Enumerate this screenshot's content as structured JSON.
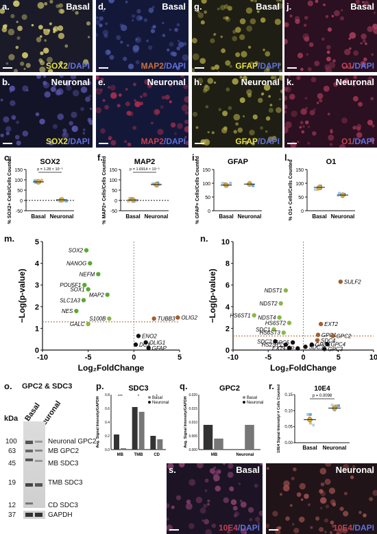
{
  "micrographs_top": [
    {
      "letter": "a.",
      "condition": "Basal",
      "stain": "SOX2",
      "dapi": "/DAPI",
      "stain_color": "#e8e040",
      "bg": "#1a1a28",
      "cell": "#d8d070"
    },
    {
      "letter": "d.",
      "condition": "Basal",
      "stain": "MAP2",
      "dapi": "/DAPI",
      "stain_color": "#c87040",
      "bg": "#141838",
      "cell": "#4a58a8"
    },
    {
      "letter": "g.",
      "condition": "Basal",
      "stain": "GFAP",
      "dapi": "/DAPI",
      "stain_color": "#e8e040",
      "bg": "#1e1e14",
      "cell": "#a8a040"
    },
    {
      "letter": "j.",
      "condition": "Basal",
      "stain": "O1",
      "dapi": "/DAPI",
      "stain_color": "#c04050",
      "bg": "#2a1020",
      "cell": "#b04060"
    },
    {
      "letter": "b.",
      "condition": "Neuronal",
      "stain": "SOX2",
      "dapi": "/DAPI",
      "stain_color": "#e8e040",
      "bg": "#141428",
      "cell": "#5a58b0"
    },
    {
      "letter": "e.",
      "condition": "Neuronal",
      "stain": "MAP2",
      "dapi": "/DAPI",
      "stain_color": "#c84050",
      "bg": "#141838",
      "cell": "#b03050"
    },
    {
      "letter": "h.",
      "condition": "Neuronal",
      "stain": "GFAP",
      "dapi": "/DAPI",
      "stain_color": "#e8e040",
      "bg": "#1e1e14",
      "cell": "#b0a848"
    },
    {
      "letter": "k.",
      "condition": "Neuronal",
      "stain": "O1",
      "dapi": "/DAPI",
      "stain_color": "#c04050",
      "bg": "#2a1020",
      "cell": "#a83858"
    }
  ],
  "panels": {
    "c": {
      "letter": "c.",
      "title": "SOX2",
      "ylabel": "% SOX2+ Cells/Cells Counted",
      "pval": "p = 1.28 × 10⁻⁵",
      "yticks": [
        "150",
        "100",
        "50",
        "0",
        "-50"
      ],
      "x": [
        "Basal",
        "Neuronal"
      ],
      "means": [
        90,
        3
      ]
    },
    "f": {
      "letter": "f.",
      "title": "MAP2",
      "ylabel": "% MAP2+ Cells/Cells Counted",
      "pval": "p = 1.6914 × 10⁻⁵",
      "yticks": [
        "150",
        "100",
        "50",
        "0",
        "-50"
      ],
      "x": [
        "Basal",
        "Neuronal"
      ],
      "means": [
        2,
        77
      ]
    },
    "i": {
      "letter": "i.",
      "title": "GFAP",
      "ylabel": "% GFAP+ Cells/Cells Counted",
      "yticks": [
        "150",
        "100",
        "50",
        "0"
      ],
      "x": [
        "Basal",
        "Neuronal"
      ],
      "means": [
        93,
        97
      ]
    },
    "l": {
      "letter": "l.",
      "title": "O1",
      "ylabel": "% O1+ Cells/Cells Counted",
      "yticks": [
        "150",
        "100",
        "50",
        "0"
      ],
      "x": [
        "Basal",
        "Neuronal"
      ],
      "means": [
        85,
        57
      ]
    }
  },
  "volcano_m": {
    "letter": "m.",
    "xlabel": "Log₂FoldChange",
    "ylabel": "−Log(p-value)",
    "xticks": [
      "-10",
      "-5",
      "0",
      "5"
    ],
    "yticks": [
      "0",
      "1",
      "2",
      "3",
      "4",
      "5"
    ],
    "points": [
      {
        "label": "SOX2",
        "x": -5.2,
        "y": 4.6,
        "c": "#5aaa30"
      },
      {
        "label": "NANOG",
        "x": -4.8,
        "y": 4.0,
        "c": "#5aaa30"
      },
      {
        "label": "NEFM",
        "x": -3.9,
        "y": 3.5,
        "c": "#5aaa30"
      },
      {
        "label": "POU5F1",
        "x": -5.4,
        "y": 3.0,
        "c": "#5aaa30"
      },
      {
        "label": "SOX1",
        "x": -5.0,
        "y": 2.8,
        "c": "#5aaa30"
      },
      {
        "label": "MAP2",
        "x": -2.9,
        "y": 2.55,
        "c": "#5aaa30"
      },
      {
        "label": "SLC1A3",
        "x": -5.5,
        "y": 2.3,
        "c": "#5aaa30"
      },
      {
        "label": "NES",
        "x": -6.3,
        "y": 1.8,
        "c": "#5aaa30"
      },
      {
        "label": "S100B",
        "x": -2.7,
        "y": 1.45,
        "c": "#8ab848"
      },
      {
        "label": "GALC",
        "x": -5.0,
        "y": 1.2,
        "c": "#8ab848"
      },
      {
        "label": "OLIG2",
        "x": 4.8,
        "y": 1.5,
        "c": "#a06030"
      },
      {
        "label": "TUBB3",
        "x": 2.2,
        "y": 1.45,
        "c": "#a06030"
      },
      {
        "label": "ENO2",
        "x": 0.5,
        "y": 0.65,
        "c": "#111"
      },
      {
        "label": "DCX",
        "x": 0.2,
        "y": 0.25,
        "c": "#111"
      },
      {
        "label": "OLIG1",
        "x": 1.3,
        "y": 0.35,
        "c": "#111"
      },
      {
        "label": "GFAP",
        "x": 1.6,
        "y": 0.1,
        "c": "#111"
      }
    ]
  },
  "volcano_n": {
    "letter": "n.",
    "xlabel": "Log₂FoldChange",
    "ylabel": "−Log(p-value)",
    "xticks": [
      "-10",
      "-5",
      "0",
      "5",
      "10"
    ],
    "yticks": [
      "0",
      "2",
      "4",
      "6",
      "8",
      "10"
    ],
    "points": [
      {
        "label": "SULF2",
        "x": 5.3,
        "y": 6.3,
        "c": "#a06030"
      },
      {
        "label": "NDST1",
        "x": -2.5,
        "y": 5.5,
        "c": "#8ab848"
      },
      {
        "label": "NDST2",
        "x": -3.2,
        "y": 4.3,
        "c": "#8ab848"
      },
      {
        "label": "HS6ST1",
        "x": -7.0,
        "y": 3.2,
        "c": "#8ab848"
      },
      {
        "label": "NDST4",
        "x": -3.4,
        "y": 3.0,
        "c": "#8ab848"
      },
      {
        "label": "HS6ST2",
        "x": -2.0,
        "y": 2.5,
        "c": "#8ab848"
      },
      {
        "label": "EXT2",
        "x": 2.5,
        "y": 2.4,
        "c": "#a06030"
      },
      {
        "label": "SDC1",
        "x": -4.2,
        "y": 1.9,
        "c": "#8ab848"
      },
      {
        "label": "HS6ST3",
        "x": -2.8,
        "y": 1.6,
        "c": "#8ab848"
      },
      {
        "label": "GPC1",
        "x": 2.1,
        "y": 1.4,
        "c": "#a06030"
      },
      {
        "label": "GPC2",
        "x": 4.2,
        "y": 1.3,
        "c": "#a06030"
      },
      {
        "label": "SDC4",
        "x": 2.0,
        "y": 0.9,
        "c": "#a06030"
      },
      {
        "label": "SDC2",
        "x": -4.0,
        "y": 0.8,
        "c": "#111"
      },
      {
        "label": "GPC5",
        "x": -1.5,
        "y": 0.7,
        "c": "#111"
      },
      {
        "label": "GPC4",
        "x": 3.4,
        "y": 0.55,
        "c": "#111"
      },
      {
        "label": "GPC6",
        "x": 1.2,
        "y": 0.5,
        "c": "#111"
      },
      {
        "label": "HS2ST1",
        "x": -2.5,
        "y": 0.5,
        "c": "#111"
      },
      {
        "label": "EXT1",
        "x": -2.0,
        "y": 0.2,
        "c": "#111"
      },
      {
        "label": "CS-EP",
        "x": -0.8,
        "y": 0.15,
        "c": "#111"
      },
      {
        "label": "SDC3",
        "x": 0.3,
        "y": 0.3,
        "c": "#111"
      },
      {
        "label": "GPC3",
        "x": 3.0,
        "y": 0.1,
        "c": "#111"
      }
    ]
  },
  "blot": {
    "letter": "o.",
    "title": "GPC2 & SDC3",
    "lanes": [
      "Basal",
      "Neuronal"
    ],
    "kda_title": "kDa",
    "markers": [
      "100",
      "63",
      "45",
      "19",
      "12",
      "37"
    ],
    "bands": [
      "Neuronal GPC2",
      "MB GPC2",
      "MB SDC3",
      "TMB SDC3",
      "CD SDC3",
      "GAPDH"
    ]
  },
  "bar_p": {
    "letter": "p.",
    "title": "SDC3",
    "ylabel": "Avg. Signal Intensity/GAPDH",
    "categories": [
      "MB",
      "TMB",
      "CD"
    ],
    "legend": [
      "Basal",
      "Neuronal"
    ],
    "sig": [
      "***",
      "*",
      "*"
    ],
    "basal": [
      0.22,
      0.62,
      0.2
    ],
    "neuronal": [
      0.02,
      0.55,
      0.15
    ],
    "yticks": [
      "0.0",
      "0.2",
      "0.4",
      "0.6",
      "0.8"
    ]
  },
  "bar_q": {
    "letter": "q.",
    "title": "GPC2",
    "ylabel": "Avg. Signal Intensity/GAPDH",
    "categories": [
      "MB",
      "Neuronal"
    ],
    "legend": [
      "Basal",
      "Neuronal"
    ],
    "basal": [
      0.009,
      0.0
    ],
    "neuronal": [
      0.004,
      0.009
    ],
    "yticks": [
      "0.000",
      "0.005",
      "0.010",
      "0.015",
      "0.020"
    ]
  },
  "dot_r": {
    "letter": "r.",
    "title": "10E4",
    "ylabel": "10E4 Signal Intensity/ # Cells Counted",
    "pval": "p = 0.0098",
    "x": [
      "Basal",
      "Neuronal"
    ],
    "means": [
      0.072,
      0.108
    ],
    "yticks": [
      "0.00",
      "0.05",
      "0.10",
      "0.15"
    ]
  },
  "micro_s": [
    {
      "letter": "s.",
      "condition": "Basal",
      "stain": "10E4",
      "dapi": "/DAPI",
      "stain_color": "#c04050",
      "bg": "#1c1424",
      "cell": "#8a4070"
    },
    {
      "letter": "",
      "condition": "Neuronal",
      "stain": "10E4",
      "dapi": "/DAPI",
      "stain_color": "#c04050",
      "bg": "#201418",
      "cell": "#a05050"
    }
  ],
  "colors": {
    "green": "#5aaa30",
    "brown": "#a06030",
    "yellow": "#d8b040",
    "blue": "#4090c8"
  }
}
